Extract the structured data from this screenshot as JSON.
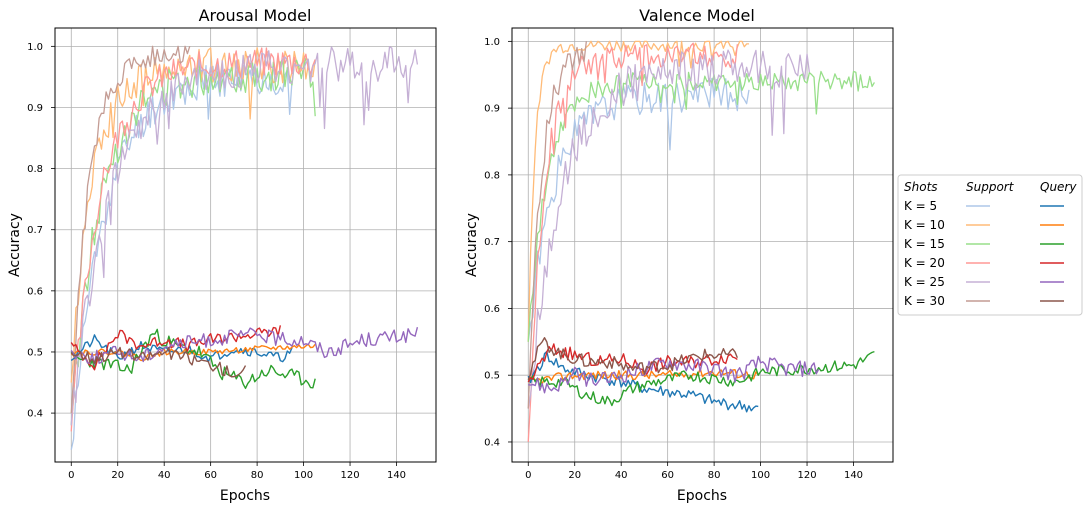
{
  "legend": {
    "col_headers": [
      "Shots",
      "Support",
      "Query"
    ],
    "rows": [
      "K = 5",
      "K = 10",
      "K = 15",
      "K = 20",
      "K = 25",
      "K = 30"
    ]
  },
  "colors": {
    "support": [
      "#aec7e8",
      "#ffbb78",
      "#98df8a",
      "#ff9896",
      "#c5b0d5",
      "#c49c94"
    ],
    "query": [
      "#1f77b4",
      "#ff7f0e",
      "#2ca02c",
      "#d62728",
      "#9467bd",
      "#8c564b"
    ],
    "grid": "#b0b0b0"
  },
  "chart_data": [
    {
      "type": "line",
      "title": "Arousal Model",
      "xlabel": "Epochs",
      "ylabel": "Accuracy",
      "xlim": [
        -7,
        157
      ],
      "ylim": [
        0.32,
        1.03
      ],
      "xticks": [
        0,
        20,
        40,
        60,
        80,
        100,
        120,
        140
      ],
      "yticks": [
        0.4,
        0.5,
        0.6,
        0.7,
        0.8,
        0.9,
        1.0
      ],
      "grid": true,
      "series": [
        {
          "shots": "K = 5",
          "kind": "support",
          "n": 96,
          "start": 0.34,
          "plateau": 0.95,
          "rate": 0.07,
          "noise": 0.03,
          "seed": 11,
          "max": 1.0
        },
        {
          "shots": "K = 10",
          "kind": "support",
          "n": 106,
          "start": 0.45,
          "plateau": 0.97,
          "rate": 0.11,
          "noise": 0.03,
          "seed": 12,
          "max": 1.0
        },
        {
          "shots": "K = 15",
          "kind": "support",
          "n": 106,
          "start": 0.38,
          "plateau": 0.955,
          "rate": 0.08,
          "noise": 0.03,
          "seed": 13,
          "max": 1.0
        },
        {
          "shots": "K = 20",
          "kind": "support",
          "n": 106,
          "start": 0.37,
          "plateau": 0.975,
          "rate": 0.08,
          "noise": 0.025,
          "seed": 14,
          "max": 1.0
        },
        {
          "shots": "K = 25",
          "kind": "support",
          "n": 150,
          "start": 0.38,
          "plateau": 0.97,
          "rate": 0.06,
          "noise": 0.03,
          "seed": 15,
          "max": 1.0
        },
        {
          "shots": "K = 30",
          "kind": "support",
          "n": 52,
          "start": 0.4,
          "plateau": 0.99,
          "rate": 0.13,
          "noise": 0.02,
          "seed": 16,
          "max": 1.0
        },
        {
          "shots": "K = 5",
          "kind": "query",
          "n": 96,
          "points": [
            [
              0,
              0.49
            ],
            [
              10,
              0.52
            ],
            [
              20,
              0.49
            ],
            [
              30,
              0.51
            ],
            [
              40,
              0.5
            ],
            [
              50,
              0.505
            ],
            [
              60,
              0.49
            ],
            [
              70,
              0.505
            ],
            [
              80,
              0.5
            ],
            [
              90,
              0.49
            ],
            [
              95,
              0.5
            ]
          ],
          "noise": 0.008,
          "seed": 21
        },
        {
          "shots": "K = 10",
          "kind": "query",
          "n": 106,
          "points": [
            [
              0,
              0.5
            ],
            [
              20,
              0.5
            ],
            [
              30,
              0.49
            ],
            [
              40,
              0.5
            ],
            [
              60,
              0.5
            ],
            [
              80,
              0.505
            ],
            [
              105,
              0.51
            ]
          ],
          "noise": 0.005,
          "seed": 22
        },
        {
          "shots": "K = 15",
          "kind": "query",
          "n": 106,
          "points": [
            [
              0,
              0.49
            ],
            [
              15,
              0.48
            ],
            [
              25,
              0.47
            ],
            [
              35,
              0.53
            ],
            [
              45,
              0.51
            ],
            [
              55,
              0.5
            ],
            [
              65,
              0.465
            ],
            [
              75,
              0.45
            ],
            [
              85,
              0.47
            ],
            [
              95,
              0.46
            ],
            [
              105,
              0.45
            ]
          ],
          "noise": 0.012,
          "seed": 23
        },
        {
          "shots": "K = 20",
          "kind": "query",
          "n": 91,
          "points": [
            [
              0,
              0.51
            ],
            [
              10,
              0.48
            ],
            [
              20,
              0.53
            ],
            [
              30,
              0.51
            ],
            [
              40,
              0.52
            ],
            [
              50,
              0.51
            ],
            [
              60,
              0.52
            ],
            [
              70,
              0.525
            ],
            [
              80,
              0.53
            ],
            [
              90,
              0.535
            ]
          ],
          "noise": 0.01,
          "seed": 24
        },
        {
          "shots": "K = 25",
          "kind": "query",
          "n": 150,
          "points": [
            [
              0,
              0.5
            ],
            [
              10,
              0.49
            ],
            [
              20,
              0.5
            ],
            [
              30,
              0.49
            ],
            [
              40,
              0.51
            ],
            [
              60,
              0.52
            ],
            [
              80,
              0.53
            ],
            [
              90,
              0.52
            ],
            [
              100,
              0.52
            ],
            [
              110,
              0.5
            ],
            [
              125,
              0.52
            ],
            [
              140,
              0.525
            ],
            [
              149,
              0.53
            ]
          ],
          "noise": 0.012,
          "seed": 25
        },
        {
          "shots": "K = 30",
          "kind": "query",
          "n": 76,
          "points": [
            [
              0,
              0.5
            ],
            [
              10,
              0.49
            ],
            [
              20,
              0.5
            ],
            [
              30,
              0.49
            ],
            [
              40,
              0.5
            ],
            [
              50,
              0.49
            ],
            [
              60,
              0.48
            ],
            [
              70,
              0.465
            ],
            [
              75,
              0.47
            ]
          ],
          "noise": 0.01,
          "seed": 26
        }
      ]
    },
    {
      "type": "line",
      "title": "Valence Model",
      "xlabel": "Epochs",
      "ylabel": "Accuracy",
      "xlim": [
        -7,
        157
      ],
      "ylim": [
        0.37,
        1.02
      ],
      "xticks": [
        0,
        20,
        40,
        60,
        80,
        100,
        120,
        140
      ],
      "yticks": [
        0.4,
        0.5,
        0.6,
        0.7,
        0.8,
        0.9,
        1.0
      ],
      "grid": true,
      "series": [
        {
          "shots": "K = 5",
          "kind": "support",
          "n": 96,
          "start": 0.55,
          "plateau": 0.92,
          "rate": 0.09,
          "noise": 0.025,
          "seed": 31,
          "max": 1.0
        },
        {
          "shots": "K = 10",
          "kind": "support",
          "n": 96,
          "start": 0.55,
          "plateau": 0.995,
          "rate": 0.35,
          "noise": 0.01,
          "seed": 32,
          "max": 1.0
        },
        {
          "shots": "K = 15",
          "kind": "support",
          "n": 150,
          "start": 0.55,
          "plateau": 0.94,
          "rate": 0.12,
          "noise": 0.015,
          "seed": 33,
          "max": 0.99
        },
        {
          "shots": "K = 20",
          "kind": "support",
          "n": 91,
          "start": 0.4,
          "plateau": 0.98,
          "rate": 0.15,
          "noise": 0.02,
          "seed": 34,
          "max": 1.0
        },
        {
          "shots": "K = 25",
          "kind": "support",
          "n": 122,
          "start": 0.45,
          "plateau": 0.96,
          "rate": 0.07,
          "noise": 0.03,
          "seed": 35,
          "max": 1.0
        },
        {
          "shots": "K = 30",
          "kind": "support",
          "n": 26,
          "start": 0.45,
          "plateau": 0.99,
          "rate": 0.18,
          "noise": 0.02,
          "seed": 36,
          "max": 1.0
        },
        {
          "shots": "K = 5",
          "kind": "query",
          "n": 100,
          "points": [
            [
              0,
              0.49
            ],
            [
              8,
              0.53
            ],
            [
              15,
              0.51
            ],
            [
              25,
              0.5
            ],
            [
              40,
              0.49
            ],
            [
              50,
              0.48
            ],
            [
              60,
              0.475
            ],
            [
              70,
              0.47
            ],
            [
              80,
              0.46
            ],
            [
              90,
              0.455
            ],
            [
              99,
              0.45
            ]
          ],
          "noise": 0.009,
          "seed": 41
        },
        {
          "shots": "K = 10",
          "kind": "query",
          "n": 100,
          "points": [
            [
              0,
              0.49
            ],
            [
              20,
              0.5
            ],
            [
              40,
              0.5
            ],
            [
              60,
              0.5
            ],
            [
              80,
              0.505
            ],
            [
              99,
              0.5
            ]
          ],
          "noise": 0.007,
          "seed": 42
        },
        {
          "shots": "K = 15",
          "kind": "query",
          "n": 150,
          "points": [
            [
              0,
              0.49
            ],
            [
              15,
              0.49
            ],
            [
              25,
              0.47
            ],
            [
              35,
              0.46
            ],
            [
              45,
              0.48
            ],
            [
              55,
              0.49
            ],
            [
              70,
              0.5
            ],
            [
              90,
              0.49
            ],
            [
              100,
              0.505
            ],
            [
              120,
              0.51
            ],
            [
              140,
              0.515
            ],
            [
              149,
              0.53
            ]
          ],
          "noise": 0.009,
          "seed": 43
        },
        {
          "shots": "K = 20",
          "kind": "query",
          "n": 91,
          "points": [
            [
              0,
              0.49
            ],
            [
              10,
              0.54
            ],
            [
              20,
              0.53
            ],
            [
              30,
              0.52
            ],
            [
              40,
              0.525
            ],
            [
              50,
              0.51
            ],
            [
              60,
              0.52
            ],
            [
              70,
              0.52
            ],
            [
              80,
              0.525
            ],
            [
              90,
              0.53
            ]
          ],
          "noise": 0.01,
          "seed": 44
        },
        {
          "shots": "K = 25",
          "kind": "query",
          "n": 126,
          "points": [
            [
              0,
              0.49
            ],
            [
              10,
              0.48
            ],
            [
              20,
              0.5
            ],
            [
              30,
              0.49
            ],
            [
              40,
              0.5
            ],
            [
              60,
              0.52
            ],
            [
              80,
              0.51
            ],
            [
              90,
              0.5
            ],
            [
              100,
              0.52
            ],
            [
              110,
              0.51
            ],
            [
              125,
              0.51
            ]
          ],
          "noise": 0.012,
          "seed": 45
        },
        {
          "shots": "K = 30",
          "kind": "query",
          "n": 91,
          "points": [
            [
              0,
              0.5
            ],
            [
              6,
              0.55
            ],
            [
              15,
              0.53
            ],
            [
              25,
              0.52
            ],
            [
              35,
              0.52
            ],
            [
              45,
              0.51
            ],
            [
              60,
              0.515
            ],
            [
              75,
              0.53
            ],
            [
              90,
              0.53
            ]
          ],
          "noise": 0.01,
          "seed": 46
        }
      ]
    }
  ]
}
